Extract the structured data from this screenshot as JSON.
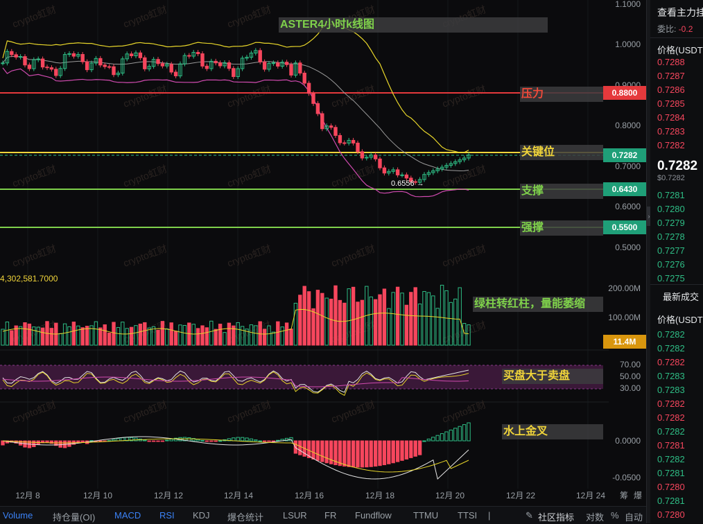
{
  "chart_title": "ASTER4小时k线图",
  "watermark": "crypto虹财",
  "price_axis": [
    "1.1000",
    "1.0000",
    "0.9000",
    "0.8000",
    "0.7000",
    "0.6000",
    "0.5000"
  ],
  "price_tags": [
    {
      "value": "0.8800",
      "color": "#e5393c"
    },
    {
      "value": "0.7282",
      "color": "#2ebd85"
    },
    {
      "value": "0.6430",
      "color": "#2ebd85"
    },
    {
      "value": "0.5500",
      "color": "#2ebd85"
    }
  ],
  "annotations": {
    "resistance": "压力",
    "key_level": "关键位",
    "support": "支撑",
    "strong_support": "强撑",
    "volume_note": "绿柱转红柱，量能萎缩",
    "rsi_note": "买盘大于卖盘",
    "macd_note": "水上金叉"
  },
  "low_marker": "0.6556 →",
  "volume": {
    "value": "4,302,581.7000",
    "axis": [
      "200.00M",
      "100.00M"
    ],
    "tag": "11.4M"
  },
  "rsi_axis": [
    "70.00",
    "50.00",
    "30.00"
  ],
  "macd_axis": [
    "0.0000",
    "-0.0500"
  ],
  "time_axis": [
    "12月 8",
    "12月 10",
    "12月 12",
    "12月 14",
    "12月 16",
    "12月 18",
    "12月 20",
    "12月 22",
    "12月 24"
  ],
  "time_axis_extra": [
    "筹",
    "爆"
  ],
  "bottom_tabs": [
    "Volume",
    "持仓量(OI)",
    "MACD",
    "RSI",
    "KDJ",
    "爆仓统计",
    "LSUR",
    "FR",
    "Fundflow",
    "TTMU",
    "TTSI"
  ],
  "bottom_right": [
    "社区指标",
    "对数",
    "%",
    "自动"
  ],
  "orderbook": {
    "header": "查看主力挂",
    "ratio_label": "委比:",
    "ratio_value": "-0.2",
    "price_header": "价格(USDT",
    "asks": [
      "0.7288",
      "0.7287",
      "0.7286",
      "0.7285",
      "0.7284",
      "0.7283",
      "0.7282"
    ],
    "last_price": "0.7282",
    "last_price_usd": "$0.7282",
    "bids": [
      "0.7281",
      "0.7280",
      "0.7279",
      "0.7278",
      "0.7277",
      "0.7276",
      "0.7275"
    ],
    "trades_header": "最新成交",
    "trades_price_header": "价格(USDT",
    "trades": [
      {
        "p": "0.7282",
        "c": "green"
      },
      {
        "p": "0.7282",
        "c": "green"
      },
      {
        "p": "0.7282",
        "c": "red"
      },
      {
        "p": "0.7283",
        "c": "green"
      },
      {
        "p": "0.7283",
        "c": "green"
      },
      {
        "p": "0.7282",
        "c": "red"
      },
      {
        "p": "0.7282",
        "c": "red"
      },
      {
        "p": "0.7282",
        "c": "green"
      },
      {
        "p": "0.7281",
        "c": "red"
      },
      {
        "p": "0.7282",
        "c": "green"
      },
      {
        "p": "0.7281",
        "c": "green"
      },
      {
        "p": "0.7280",
        "c": "red"
      },
      {
        "p": "0.7281",
        "c": "green"
      },
      {
        "p": "0.7280",
        "c": "red"
      }
    ]
  },
  "colors": {
    "up": "#2ebd85",
    "down": "#f6465d",
    "resistance": "#e5393c",
    "key": "#f0d43a",
    "support": "#7fd14b"
  }
}
